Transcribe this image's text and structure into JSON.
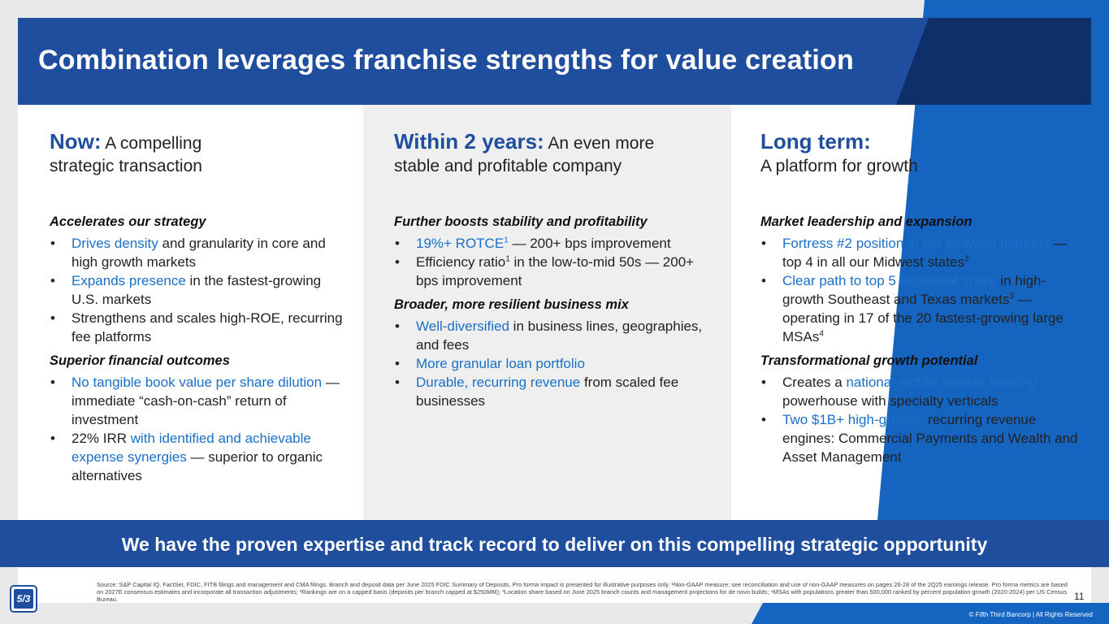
{
  "title": "Combination leverages franchise strengths for value creation",
  "columns": [
    {
      "lead": "Now:",
      "subtitle_a": " A compelling",
      "subtitle_b": "strategic transaction",
      "sections": [
        {
          "title": "Accelerates our strategy",
          "bullets": [
            {
              "hl": "Drives density",
              "rest": " and granularity in core and high growth markets"
            },
            {
              "hl": "Expands presence",
              "rest": " in the fastest-growing U.S. markets"
            },
            {
              "pre": "Strengthens and scales high-ROE, recurring fee platforms"
            }
          ]
        },
        {
          "title": "Superior financial outcomes",
          "bullets": [
            {
              "hl": "No tangible book value per share dilution",
              "rest": " — immediate “cash-on-cash” return of investment"
            },
            {
              "pre": "22% IRR ",
              "hl": "with identified and achievable expense synergies",
              "rest": " — superior to organic alternatives"
            }
          ]
        }
      ]
    },
    {
      "lead": "Within 2 years:",
      "subtitle_a": " An even more",
      "subtitle_b": "stable and profitable company",
      "sections": [
        {
          "title": "Further boosts stability and profitability",
          "bullets": [
            {
              "hl": "19%+ ROTCE",
              "sup_hl": "1",
              "rest": " — 200+ bps improvement"
            },
            {
              "pre": "Efficiency ratio",
              "sup_pre": "1",
              "rest": " in the low-to-mid 50s — 200+ bps improvement"
            }
          ]
        },
        {
          "title": "Broader, more resilient business mix",
          "bullets": [
            {
              "hl": "Well-diversified",
              "rest": " in business lines, geographies, and fees"
            },
            {
              "hl": "More granular loan portfolio"
            },
            {
              "hl": "Durable, recurring revenue",
              "rest": " from scaled fee businesses"
            }
          ]
        }
      ]
    },
    {
      "lead": "Long term:",
      "subtitle_a": "",
      "subtitle_b": "A platform for growth",
      "sections": [
        {
          "title": "Market leadership and expansion",
          "bullets": [
            {
              "hl": "Fortress #2 position in our Midwest markets",
              "rest": " — top 4 in all our Midwest states",
              "sup_rest": "2"
            },
            {
              "hl": "Clear path to top 5 locational share",
              "rest": " in high-growth Southeast and Texas markets",
              "sup_rest": "3",
              "rest2": " — operating in 17 of the 20 fastest-growing large MSAs",
              "sup_rest2": "4"
            }
          ]
        },
        {
          "title": "Transformational growth potential",
          "bullets": [
            {
              "pre": "Creates a ",
              "hl": "national middle market banking",
              "rest": " powerhouse with specialty verticals"
            },
            {
              "hl": "Two $1B+ high-growth,",
              "rest": " recurring revenue engines: Commercial Payments and Wealth and Asset Management"
            }
          ]
        }
      ]
    }
  ],
  "banner": "We have the proven expertise and track record to deliver on this compelling strategic opportunity",
  "footer": {
    "source": "Source: S&P Capital IQ, FactSet, FDIC, FITB filings and management and CMA filings. Branch and deposit data per June 2025 FDIC Summary of Deposits. Pro forma impact is presented for illustrative purposes only. ¹Non-GAAP measure: see reconciliation and use of non-GAAP measures on pages 26-28 of the 2Q25 earnings release. Pro forma metrics are based on 2027E consensus estimates and incorporate all transaction adjustments; ²Rankings are on a capped basis (deposits per branch capped at $250MM); ³Location share based on June 2025 branch counts and management projections for de novo builds; ⁴MSAs with populations greater than 500,000 ranked by percent population growth (2020-2024) per US Census Bureau.",
    "page_number": "11",
    "copyright": "© Fifth Third Bancorp | All Rights Reserved",
    "logo_text": "5/3"
  },
  "colors": {
    "brand_blue": "#1f4e9e",
    "dark_navy": "#0f2f6b",
    "accent_blue": "#1565c0",
    "highlight_text": "#1a6fc9"
  }
}
